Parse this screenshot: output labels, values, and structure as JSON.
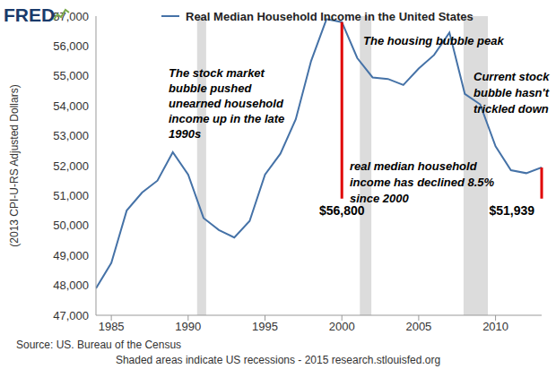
{
  "chart_data": {
    "type": "line",
    "logo": "FRED",
    "title": "Real Median Household Income in the United States",
    "y_label": "(2013 CPI-U-RS Adjusted Dollars)",
    "source": "Source: US. Bureau of the Census",
    "footer": "Shaded areas indicate US recessions - 2015 research.stlouisfed.org",
    "x": [
      1984,
      1985,
      1986,
      1987,
      1988,
      1989,
      1990,
      1991,
      1992,
      1993,
      1994,
      1995,
      1996,
      1997,
      1998,
      1999,
      2000,
      2001,
      2002,
      2003,
      2004,
      2005,
      2006,
      2007,
      2008,
      2009,
      2010,
      2011,
      2012,
      2013
    ],
    "values": [
      47900,
      48750,
      50500,
      51100,
      51500,
      52450,
      51700,
      50250,
      49850,
      49600,
      50150,
      51700,
      52400,
      53550,
      55500,
      56900,
      56800,
      55600,
      54950,
      54900,
      54700,
      55250,
      55700,
      56450,
      54400,
      54050,
      52650,
      51850,
      51750,
      51939
    ],
    "color": "#4572a7",
    "xlim": [
      1984,
      2013
    ],
    "xticks": [
      1985,
      1990,
      1995,
      2000,
      2005,
      2010
    ],
    "ylim": [
      47000,
      57000
    ],
    "yticks": [
      {
        "value": 47000,
        "label": "47,000"
      },
      {
        "value": 48000,
        "label": "48,000"
      },
      {
        "value": 49000,
        "label": "49,000"
      },
      {
        "value": 50000,
        "label": "50,000"
      },
      {
        "value": 51000,
        "label": "51,000"
      },
      {
        "value": 52000,
        "label": "52,000"
      },
      {
        "value": 53000,
        "label": "53,000"
      },
      {
        "value": 54000,
        "label": "54,000"
      },
      {
        "value": 55000,
        "label": "55,000"
      },
      {
        "value": 56000,
        "label": "56,000"
      },
      {
        "value": 57000,
        "label": "57,000"
      }
    ],
    "grid": false,
    "recessions": [
      [
        1990.58,
        1991.17
      ],
      [
        2001.17,
        2001.92
      ],
      [
        2007.92,
        2009.5
      ]
    ],
    "markers": [
      {
        "x": 2000,
        "from": 56800,
        "to": 50900,
        "label": "$56,800",
        "color": "#e00000"
      },
      {
        "x": 2013,
        "from": 51939,
        "to": 50900,
        "label": "$51,939",
        "color": "#e00000"
      }
    ],
    "annotations": [
      "The stock market\nbubble pushed\nunearned household\nincome up in the late\n1990s",
      "The housing bubble peak",
      "Current stock\nbubble hasn't\ntrickled down",
      "real median household\nincome has declined 8.5%\nsince 2000"
    ]
  }
}
